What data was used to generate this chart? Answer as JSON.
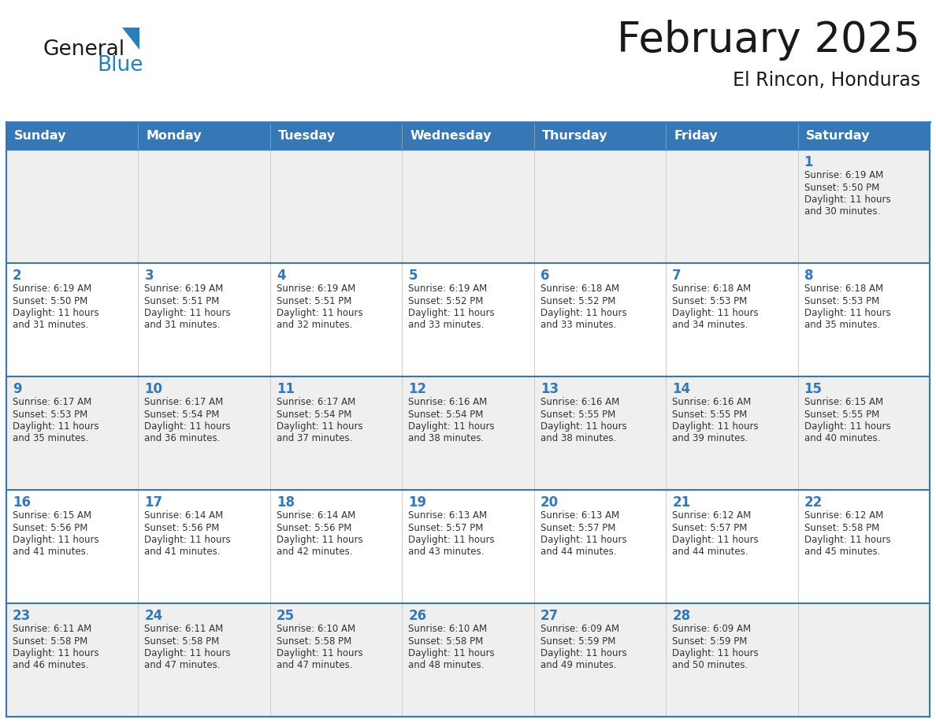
{
  "title": "February 2025",
  "subtitle": "El Rincon, Honduras",
  "header_color": "#3578b5",
  "header_text_color": "#ffffff",
  "days_of_week": [
    "Sunday",
    "Monday",
    "Tuesday",
    "Wednesday",
    "Thursday",
    "Friday",
    "Saturday"
  ],
  "background_color": "#ffffff",
  "cell_bg_even": "#efefef",
  "cell_bg_white": "#ffffff",
  "border_color": "#3578b5",
  "day_number_color": "#3578b5",
  "text_color": "#333333",
  "logo_general_color": "#1a1a1a",
  "logo_blue_color": "#2980b9",
  "calendar": [
    [
      null,
      null,
      null,
      null,
      null,
      null,
      1
    ],
    [
      2,
      3,
      4,
      5,
      6,
      7,
      8
    ],
    [
      9,
      10,
      11,
      12,
      13,
      14,
      15
    ],
    [
      16,
      17,
      18,
      19,
      20,
      21,
      22
    ],
    [
      23,
      24,
      25,
      26,
      27,
      28,
      null
    ]
  ],
  "sun_data": {
    "1": {
      "rise": "6:19 AM",
      "set": "5:50 PM",
      "hours": "11",
      "minutes": "30"
    },
    "2": {
      "rise": "6:19 AM",
      "set": "5:50 PM",
      "hours": "11",
      "minutes": "31"
    },
    "3": {
      "rise": "6:19 AM",
      "set": "5:51 PM",
      "hours": "11",
      "minutes": "31"
    },
    "4": {
      "rise": "6:19 AM",
      "set": "5:51 PM",
      "hours": "11",
      "minutes": "32"
    },
    "5": {
      "rise": "6:19 AM",
      "set": "5:52 PM",
      "hours": "11",
      "minutes": "33"
    },
    "6": {
      "rise": "6:18 AM",
      "set": "5:52 PM",
      "hours": "11",
      "minutes": "33"
    },
    "7": {
      "rise": "6:18 AM",
      "set": "5:53 PM",
      "hours": "11",
      "minutes": "34"
    },
    "8": {
      "rise": "6:18 AM",
      "set": "5:53 PM",
      "hours": "11",
      "minutes": "35"
    },
    "9": {
      "rise": "6:17 AM",
      "set": "5:53 PM",
      "hours": "11",
      "minutes": "35"
    },
    "10": {
      "rise": "6:17 AM",
      "set": "5:54 PM",
      "hours": "11",
      "minutes": "36"
    },
    "11": {
      "rise": "6:17 AM",
      "set": "5:54 PM",
      "hours": "11",
      "minutes": "37"
    },
    "12": {
      "rise": "6:16 AM",
      "set": "5:54 PM",
      "hours": "11",
      "minutes": "38"
    },
    "13": {
      "rise": "6:16 AM",
      "set": "5:55 PM",
      "hours": "11",
      "minutes": "38"
    },
    "14": {
      "rise": "6:16 AM",
      "set": "5:55 PM",
      "hours": "11",
      "minutes": "39"
    },
    "15": {
      "rise": "6:15 AM",
      "set": "5:55 PM",
      "hours": "11",
      "minutes": "40"
    },
    "16": {
      "rise": "6:15 AM",
      "set": "5:56 PM",
      "hours": "11",
      "minutes": "41"
    },
    "17": {
      "rise": "6:14 AM",
      "set": "5:56 PM",
      "hours": "11",
      "minutes": "41"
    },
    "18": {
      "rise": "6:14 AM",
      "set": "5:56 PM",
      "hours": "11",
      "minutes": "42"
    },
    "19": {
      "rise": "6:13 AM",
      "set": "5:57 PM",
      "hours": "11",
      "minutes": "43"
    },
    "20": {
      "rise": "6:13 AM",
      "set": "5:57 PM",
      "hours": "11",
      "minutes": "44"
    },
    "21": {
      "rise": "6:12 AM",
      "set": "5:57 PM",
      "hours": "11",
      "minutes": "44"
    },
    "22": {
      "rise": "6:12 AM",
      "set": "5:58 PM",
      "hours": "11",
      "minutes": "45"
    },
    "23": {
      "rise": "6:11 AM",
      "set": "5:58 PM",
      "hours": "11",
      "minutes": "46"
    },
    "24": {
      "rise": "6:11 AM",
      "set": "5:58 PM",
      "hours": "11",
      "minutes": "47"
    },
    "25": {
      "rise": "6:10 AM",
      "set": "5:58 PM",
      "hours": "11",
      "minutes": "47"
    },
    "26": {
      "rise": "6:10 AM",
      "set": "5:58 PM",
      "hours": "11",
      "minutes": "48"
    },
    "27": {
      "rise": "6:09 AM",
      "set": "5:59 PM",
      "hours": "11",
      "minutes": "49"
    },
    "28": {
      "rise": "6:09 AM",
      "set": "5:59 PM",
      "hours": "11",
      "minutes": "50"
    }
  }
}
